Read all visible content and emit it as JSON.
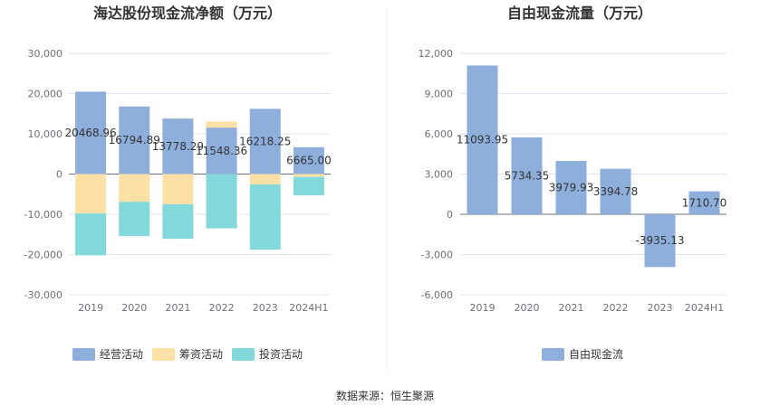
{
  "source": "数据来源：恒生聚源",
  "chart_data": [
    {
      "type": "bar",
      "stacked": true,
      "title": "海达股份现金流净额（万元）",
      "categories": [
        "2019",
        "2020",
        "2021",
        "2022",
        "2023",
        "2024H1"
      ],
      "ylim": [
        -30000,
        30000
      ],
      "yticks": [
        "30,000",
        "20,000",
        "10,000",
        "0",
        "-10,000",
        "-20,000",
        "-30,000"
      ],
      "grid": true,
      "legend_position": "bottom",
      "series": [
        {
          "name": "经营活动",
          "color": "#8eaedc",
          "values": [
            20468.96,
            16794.89,
            13778.29,
            11548.36,
            16218.25,
            6665.0
          ],
          "labels": [
            "20468.96",
            "16794.89",
            "13778.29",
            "11548.36",
            "16218.25",
            "6665.00"
          ]
        },
        {
          "name": "筹资活动",
          "color": "#fde0a6",
          "values": [
            -9800,
            -6900,
            -7500,
            1500,
            -2600,
            -700
          ]
        },
        {
          "name": "投资活动",
          "color": "#82d8da",
          "values": [
            -10400,
            -8500,
            -8600,
            -13500,
            -16200,
            -4600
          ]
        }
      ]
    },
    {
      "type": "bar",
      "title": "自由现金流量（万元）",
      "categories": [
        "2019",
        "2020",
        "2021",
        "2022",
        "2023",
        "2024H1"
      ],
      "ylim": [
        -6000,
        12000
      ],
      "yticks": [
        "12,000",
        "9,000",
        "6,000",
        "3,000",
        "0",
        "-3,000",
        "-6,000"
      ],
      "grid": true,
      "legend_position": "bottom",
      "series": [
        {
          "name": "自由现金流",
          "color": "#8eaedc",
          "values": [
            11093.95,
            5734.35,
            3979.93,
            3394.78,
            -3935.13,
            1710.7
          ],
          "labels": [
            "11093.95",
            "5734.35",
            "3979.93",
            "3394.78",
            "-3935.13",
            "1710.70"
          ]
        }
      ]
    }
  ]
}
